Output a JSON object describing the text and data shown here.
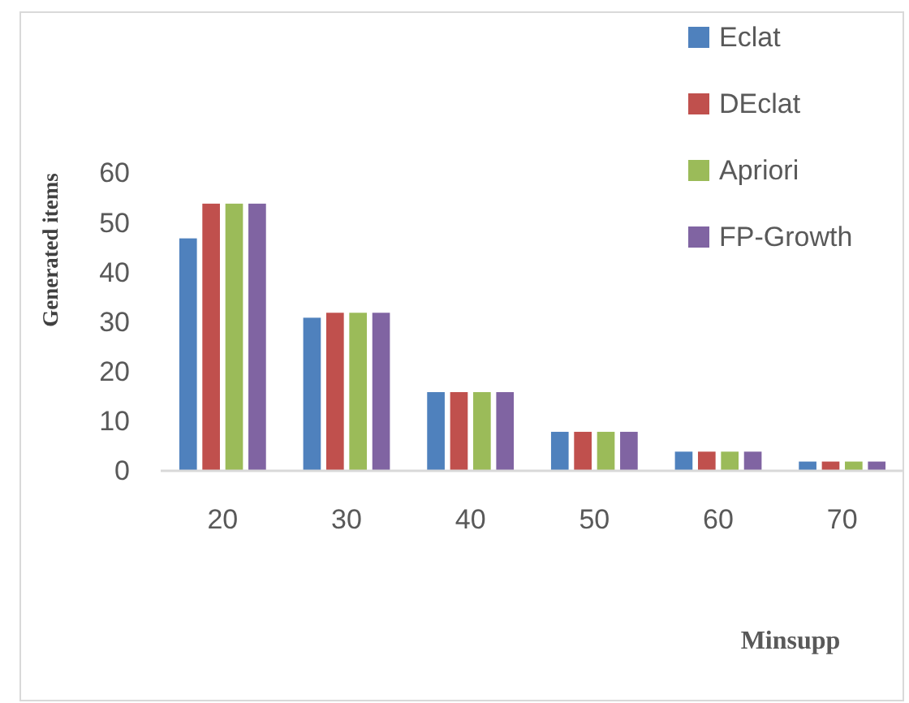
{
  "chart_data": {
    "type": "bar",
    "xlabel": "Minsupp",
    "ylabel": "Generated items",
    "categories": [
      "20",
      "30",
      "40",
      "50",
      "60",
      "70"
    ],
    "series": [
      {
        "name": "Eclat",
        "color": "#4f81bd",
        "values": [
          47,
          31,
          16,
          8,
          4,
          2
        ]
      },
      {
        "name": "DEclat",
        "color": "#c0504d",
        "values": [
          54,
          32,
          16,
          8,
          4,
          2
        ]
      },
      {
        "name": "Apriori",
        "color": "#9bbb59",
        "values": [
          54,
          32,
          16,
          8,
          4,
          2
        ]
      },
      {
        "name": "FP-Growth",
        "color": "#8064a2",
        "values": [
          54,
          32,
          16,
          8,
          4,
          2
        ]
      }
    ],
    "ylim": [
      0,
      60
    ],
    "yticks": [
      0,
      10,
      20,
      30,
      40,
      50,
      60
    ],
    "legend": "top right"
  }
}
